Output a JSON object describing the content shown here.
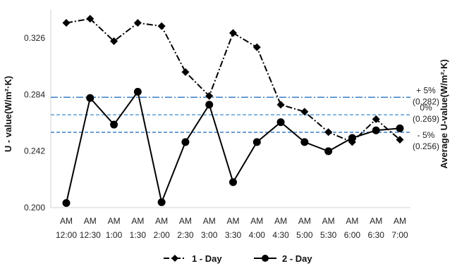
{
  "chart_data": {
    "type": "line",
    "title": "",
    "ylabel": "U - value(W/m²·K)",
    "y2label": "Average U-value(W/m²·K)",
    "ylim": [
      0.2,
      0.347
    ],
    "yticks": [
      "0.200",
      "0.242",
      "0.284",
      "0.326"
    ],
    "ytick_values": [
      0.2,
      0.242,
      0.284,
      0.326
    ],
    "categories": [
      [
        "AM",
        "12:00"
      ],
      [
        "AM",
        "12:30"
      ],
      [
        "AM",
        "1:00"
      ],
      [
        "AM",
        "1:30"
      ],
      [
        "AM",
        "2:00"
      ],
      [
        "AM",
        "2:30"
      ],
      [
        "AM",
        "3:00"
      ],
      [
        "AM",
        "3:30"
      ],
      [
        "AM",
        "4:00"
      ],
      [
        "AM",
        "4:30"
      ],
      [
        "AM",
        "5:00"
      ],
      [
        "AM",
        "5:30"
      ],
      [
        "AM",
        "6:00"
      ],
      [
        "AM",
        "6:30"
      ],
      [
        "AM",
        "7:00"
      ]
    ],
    "series": [
      {
        "name": "1 - Day",
        "style": "dash-dot",
        "marker": "diamond",
        "color": "#000000",
        "values": [
          0.3373,
          0.3404,
          0.3237,
          0.3373,
          0.3349,
          0.3008,
          0.283,
          0.3298,
          0.3192,
          0.2765,
          0.2713,
          0.2561,
          0.2487,
          0.2657,
          0.2505
        ]
      },
      {
        "name": "2 - Day",
        "style": "solid",
        "marker": "circle",
        "color": "#000000",
        "values": [
          0.2034,
          0.2815,
          0.2617,
          0.2861,
          0.204,
          0.2487,
          0.2765,
          0.2189,
          0.2487,
          0.2635,
          0.2487,
          0.2419,
          0.2518,
          0.2574,
          0.2589
        ]
      }
    ],
    "reference_lines": [
      {
        "value": 0.282,
        "label": "+ 5%",
        "value_label": "(0.282)",
        "color": "#3a7fc4",
        "style": "dash-dot"
      },
      {
        "value": 0.269,
        "label": "0%",
        "value_label": "(0.269)",
        "color": "#5a9fd8",
        "style": "dashed"
      },
      {
        "value": 0.256,
        "label": "- 5%",
        "value_label": "(0.256)",
        "color": "#3a7fc4",
        "style": "dashed"
      }
    ],
    "legend_position": "bottom",
    "grid": false
  }
}
